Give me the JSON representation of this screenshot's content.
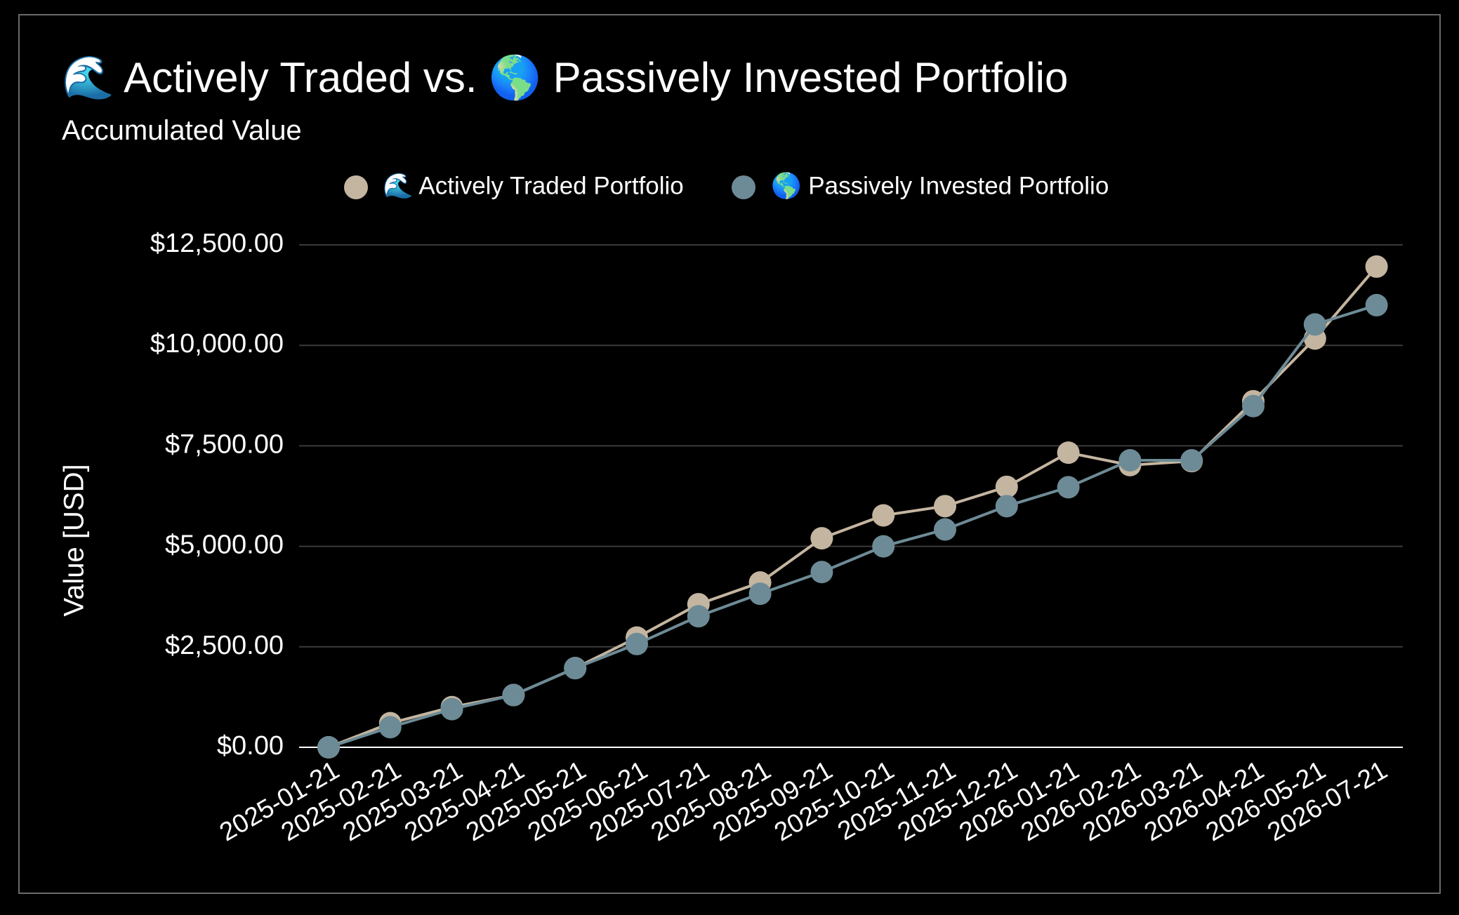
{
  "title": "🌊 Actively Traded vs. 🌎 Passively Invested Portfolio",
  "subtitle": "Accumulated Value",
  "colors": {
    "background": "#000000",
    "active": "#c4b5a0",
    "passive": "#6d8b96",
    "grid": "#3a3a3a",
    "axis": "#ffffff"
  },
  "chart_data": {
    "type": "line",
    "title": "🌊 Actively Traded vs. 🌎 Passively Invested Portfolio",
    "subtitle": "Accumulated Value",
    "xlabel": "",
    "ylabel": "Value [USD]",
    "ylim": [
      0,
      12500
    ],
    "yticks": [
      "$0.00",
      "$2,500.00",
      "$5,000.00",
      "$7,500.00",
      "$10,000.00",
      "$12,500.00"
    ],
    "legend_position": "top",
    "grid": true,
    "x": [
      "2025-01-21",
      "2025-02-21",
      "2025-03-21",
      "2025-04-21",
      "2025-05-21",
      "2025-06-21",
      "2025-07-21",
      "2025-08-21",
      "2025-09-21",
      "2025-10-21",
      "2025-11-21",
      "2025-12-21",
      "2026-01-21",
      "2026-02-21",
      "2026-03-21",
      "2026-04-21",
      "2026-05-21",
      "2026-07-21"
    ],
    "series": [
      {
        "name": "🌊 Actively Traded Portfolio",
        "color": "#c4b5a0",
        "values": [
          0,
          600,
          1000,
          1300,
          1970,
          2730,
          3560,
          4100,
          5200,
          5770,
          6000,
          6480,
          7330,
          7020,
          7120,
          8610,
          10170,
          11960
        ]
      },
      {
        "name": "🌎 Passively Invested Portfolio",
        "color": "#6d8b96",
        "values": [
          0,
          500,
          950,
          1300,
          1970,
          2570,
          3260,
          3820,
          4360,
          5000,
          5420,
          6000,
          6470,
          7140,
          7140,
          8490,
          10520,
          11000
        ]
      }
    ]
  }
}
